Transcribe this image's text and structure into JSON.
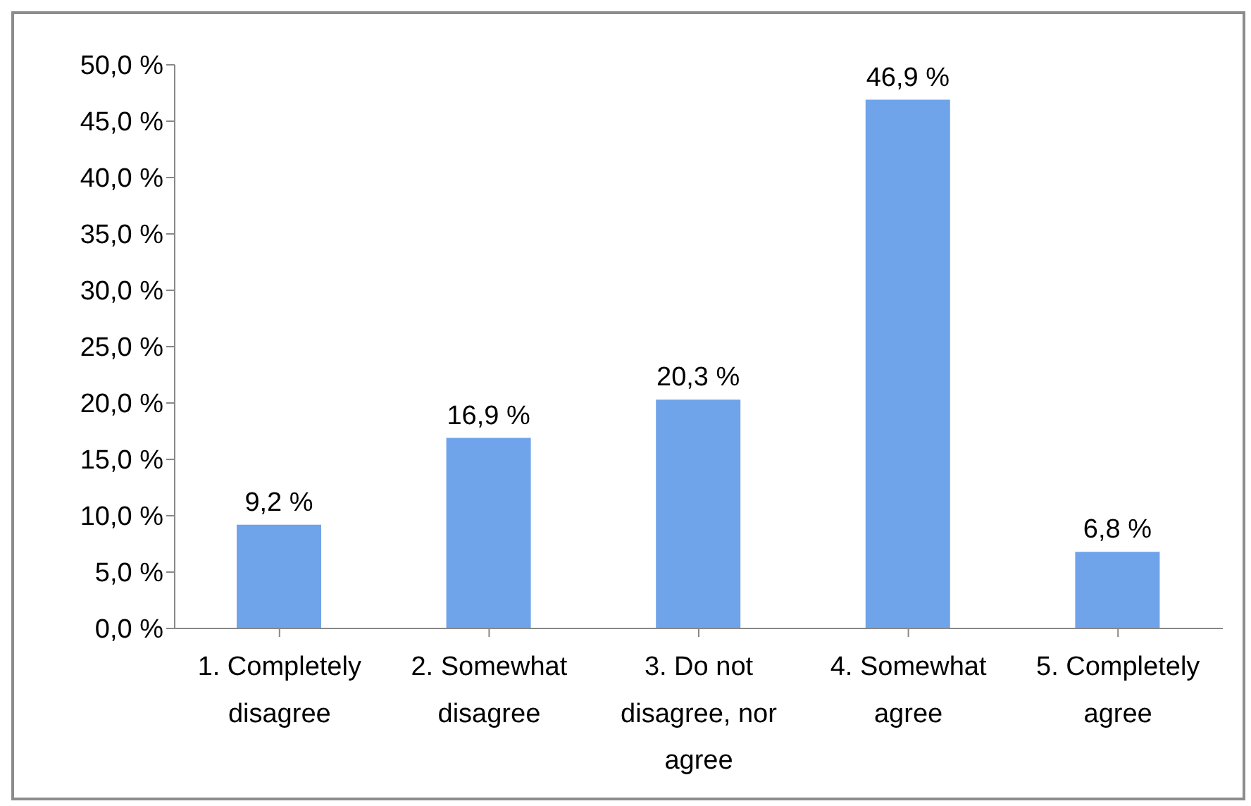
{
  "chart_data": {
    "type": "bar",
    "categories": [
      "1. Completely disagree",
      "2. Somewhat disagree",
      "3. Do not disagree, nor agree",
      "4. Somewhat agree",
      "5. Completely agree"
    ],
    "values": [
      9.2,
      16.9,
      20.3,
      46.9,
      6.8
    ],
    "value_labels": [
      "9,2 %",
      "16,9 %",
      "20,3 %",
      "46,9 %",
      "6,8 %"
    ],
    "color": "#6fa3ea",
    "ylim": [
      0,
      50
    ],
    "yticks": [
      {
        "value": 0,
        "label": "0,0 %"
      },
      {
        "value": 5,
        "label": "5,0 %"
      },
      {
        "value": 10,
        "label": "10,0 %"
      },
      {
        "value": 15,
        "label": "15,0 %"
      },
      {
        "value": 20,
        "label": "20,0 %"
      },
      {
        "value": 25,
        "label": "25,0 %"
      },
      {
        "value": 30,
        "label": "30,0 %"
      },
      {
        "value": 35,
        "label": "35,0 %"
      },
      {
        "value": 40,
        "label": "40,0 %"
      },
      {
        "value": 45,
        "label": "45,0 %"
      },
      {
        "value": 50,
        "label": "50,0 %"
      }
    ],
    "grid": false,
    "legend": false
  }
}
